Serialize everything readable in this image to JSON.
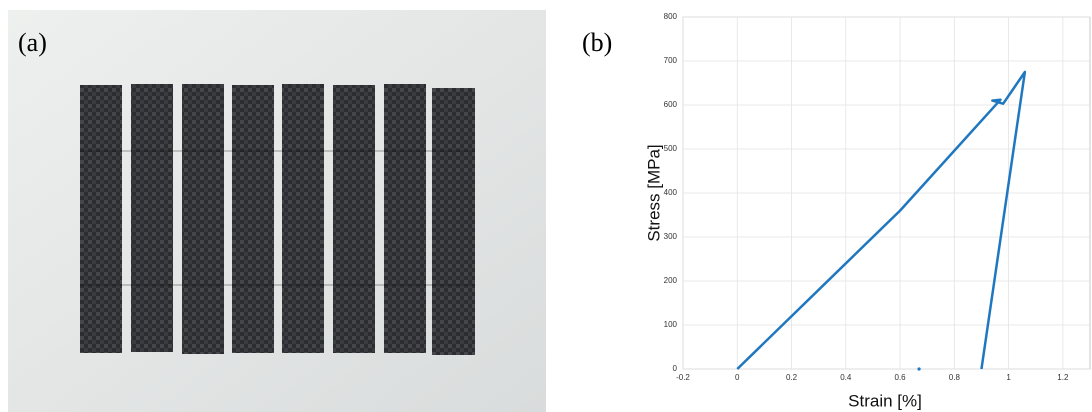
{
  "figure_labels": [
    "(a)",
    "(b)"
  ],
  "chart_data": {
    "type": "line",
    "x_label": "Strain [%]",
    "y_label": "Stress [MPa]",
    "series": [
      {
        "color": "#1f77c0",
        "x": [
          0,
          0.05,
          0.3,
          0.6,
          0.97,
          0.94,
          0.98,
          1.06,
          0.9
        ],
        "values": [
          0,
          30,
          180,
          360,
          612,
          610,
          603,
          675,
          0
        ]
      },
      {
        "color": "#1f77c0",
        "marker_only": true,
        "x": [
          0.67
        ],
        "values": [
          0
        ]
      }
    ],
    "xlim": [
      -0.2,
      1.3
    ],
    "ylim": [
      0,
      800
    ],
    "xticks": [
      -0.2,
      0,
      0.2,
      0.4,
      0.6,
      0.8,
      1,
      1.2
    ],
    "yticks": [
      0,
      100,
      200,
      300,
      400,
      500,
      600,
      700,
      800
    ],
    "grid": true
  }
}
